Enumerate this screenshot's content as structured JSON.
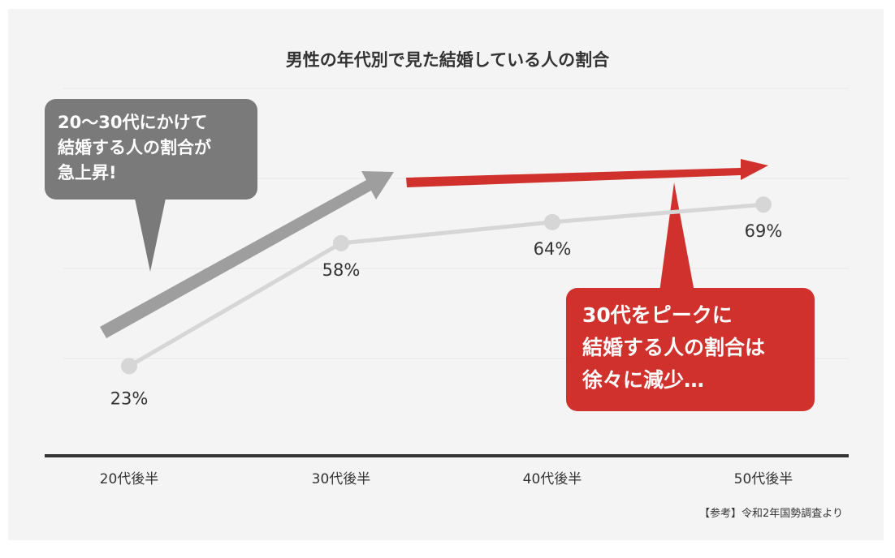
{
  "chart_data": {
    "type": "line",
    "title": "男性の年代別で見た結婚している人の割合",
    "categories": [
      "20代後半",
      "30代後半",
      "40代後半",
      "50代後半"
    ],
    "values": [
      23,
      58,
      64,
      69
    ],
    "labels": [
      "23%",
      "58%",
      "64%",
      "69%"
    ],
    "ylim": [
      0,
      100
    ],
    "grid": true,
    "xlabel": "",
    "ylabel": ""
  },
  "annotations": {
    "gray_callout": [
      "20〜30代にかけて",
      "結婚する人の割合が",
      "急上昇!"
    ],
    "red_callout": [
      "30代をピークに",
      "結婚する人の割合は",
      "徐々に減少…"
    ]
  },
  "source": "【参考】令和2年国勢調査より",
  "colors": {
    "line": "#d6d6d6",
    "gray": "#7a7a7a",
    "arrow_gray": "#9e9e9e",
    "red": "#d0312d",
    "axis": "#333333"
  }
}
